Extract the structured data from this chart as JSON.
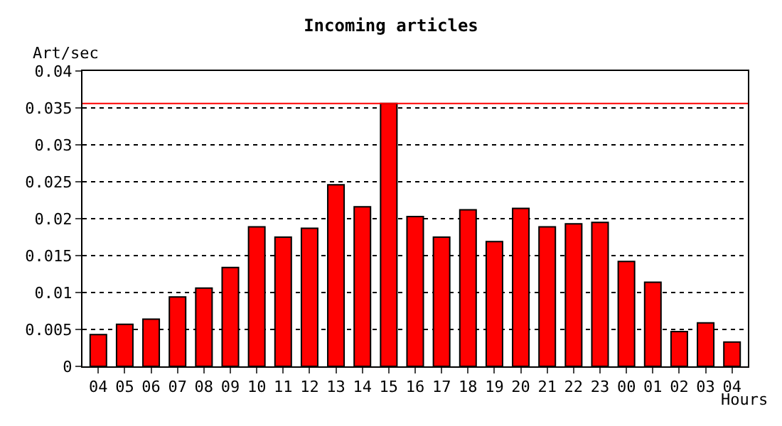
{
  "chart_data": {
    "type": "bar",
    "title": "Incoming articles",
    "ylabel": "Art/sec",
    "xlabel": "Hours",
    "categories": [
      "04",
      "05",
      "06",
      "07",
      "08",
      "09",
      "10",
      "11",
      "12",
      "13",
      "14",
      "15",
      "16",
      "17",
      "18",
      "19",
      "20",
      "21",
      "22",
      "23",
      "00",
      "01",
      "02",
      "03",
      "04"
    ],
    "values": [
      0.0043,
      0.0057,
      0.0064,
      0.0094,
      0.0106,
      0.0134,
      0.0189,
      0.0175,
      0.0187,
      0.0246,
      0.0216,
      0.0356,
      0.0203,
      0.0175,
      0.0212,
      0.0169,
      0.0214,
      0.0189,
      0.0193,
      0.0195,
      0.0142,
      0.0114,
      0.0047,
      0.0059,
      0.0033
    ],
    "color": "#ff0000",
    "ylim": [
      0,
      0.04
    ],
    "yticks": [
      0,
      0.005,
      0.01,
      0.015,
      0.02,
      0.025,
      0.03,
      0.035,
      0.04
    ],
    "grid": "y",
    "ref_lines": [
      {
        "axis": "y",
        "value": 0.0356,
        "color": "#ff0000",
        "line_style": "solid"
      }
    ]
  }
}
